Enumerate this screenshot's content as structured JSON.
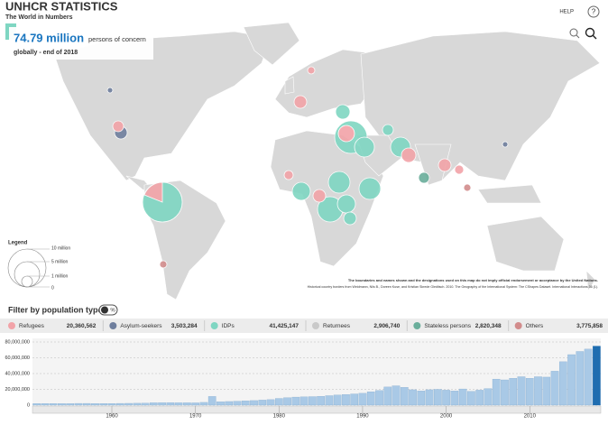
{
  "header": {
    "title": "UNHCR STATISTICS",
    "subtitle": "The World in Numbers",
    "help": "HELP",
    "help_icon": "?"
  },
  "headline": {
    "value": "74.79 million",
    "text": "persons of concern",
    "sub": "globally - end of 2018"
  },
  "legend": {
    "title": "Legend",
    "labels": [
      "10 million",
      "5 million",
      "1 million",
      "0"
    ]
  },
  "disclaimer": [
    "The boundaries and names shown and the designations used on this map do not imply official endorsement or acceptance by the United Nations.",
    "Historical country borders from Weidmann, Nils B., Doreen Kuse, and Kristian Skrede Gleditsch. 2010. The Geography of the International System: The CShapes Dataset. International Interactions 36 (1)."
  ],
  "filter": {
    "title": "Filter by population type",
    "toggle": "%"
  },
  "population_types": [
    {
      "name": "Refugees",
      "value": "20,360,562",
      "color": "#f2a3a8"
    },
    {
      "name": "Asylum-seekers",
      "value": "3,503,284",
      "color": "#6f7f9e"
    },
    {
      "name": "IDPs",
      "value": "41,425,147",
      "color": "#7fd6c2"
    },
    {
      "name": "Returnees",
      "value": "2,906,740",
      "color": "#c9c9c9"
    },
    {
      "name": "Stateless persons",
      "value": "2,820,348",
      "color": "#6aae9b"
    },
    {
      "name": "Others",
      "value": "3,775,858",
      "color": "#d28c8c"
    }
  ],
  "chart_data": {
    "type": "bar",
    "x": [
      1951,
      1952,
      1953,
      1954,
      1955,
      1956,
      1957,
      1958,
      1959,
      1960,
      1961,
      1962,
      1963,
      1964,
      1965,
      1966,
      1967,
      1968,
      1969,
      1970,
      1971,
      1972,
      1973,
      1974,
      1975,
      1976,
      1977,
      1978,
      1979,
      1980,
      1981,
      1982,
      1983,
      1984,
      1985,
      1986,
      1987,
      1988,
      1989,
      1990,
      1991,
      1992,
      1993,
      1994,
      1995,
      1996,
      1997,
      1998,
      1999,
      2000,
      2001,
      2002,
      2003,
      2004,
      2005,
      2006,
      2007,
      2008,
      2009,
      2010,
      2011,
      2012,
      2013,
      2014,
      2015,
      2016,
      2017,
      2018
    ],
    "values": [
      2100000,
      2100000,
      2100000,
      2000000,
      2000000,
      2200000,
      2200000,
      2100000,
      2100000,
      2100000,
      2200000,
      2300000,
      2400000,
      2500000,
      3000000,
      3100000,
      3200000,
      3000000,
      3000000,
      2900000,
      3500000,
      11000000,
      4200000,
      4600000,
      5000000,
      5400000,
      5800000,
      6400000,
      7000000,
      8500000,
      9500000,
      10200000,
      10500000,
      10800000,
      11200000,
      12000000,
      12800000,
      13500000,
      14200000,
      15000000,
      17000000,
      18500000,
      23000000,
      24500000,
      22500000,
      19500000,
      18000000,
      19500000,
      20000000,
      19000000,
      18000000,
      20500000,
      17500000,
      19000000,
      21000000,
      33000000,
      32000000,
      34000000,
      36000000,
      34000000,
      36000000,
      35500000,
      43000000,
      55000000,
      64000000,
      68000000,
      71000000,
      74790000
    ],
    "xlim": [
      1950.5,
      2018.5
    ],
    "xticks": [
      1960,
      1970,
      1980,
      1990,
      2000,
      2010
    ],
    "ylim": [
      0,
      80000000
    ],
    "yticks": [
      {
        "value": 0,
        "label": "0"
      },
      {
        "value": 20000000,
        "label": "20,000,000"
      },
      {
        "value": 40000000,
        "label": "40,000,000"
      },
      {
        "value": 60000000,
        "label": "60,000,000"
      },
      {
        "value": 80000000,
        "label": "80,000,000"
      }
    ],
    "color": "#a9c9e6",
    "selected_color": "#1f6db0",
    "selected": 2018,
    "grid": true
  }
}
